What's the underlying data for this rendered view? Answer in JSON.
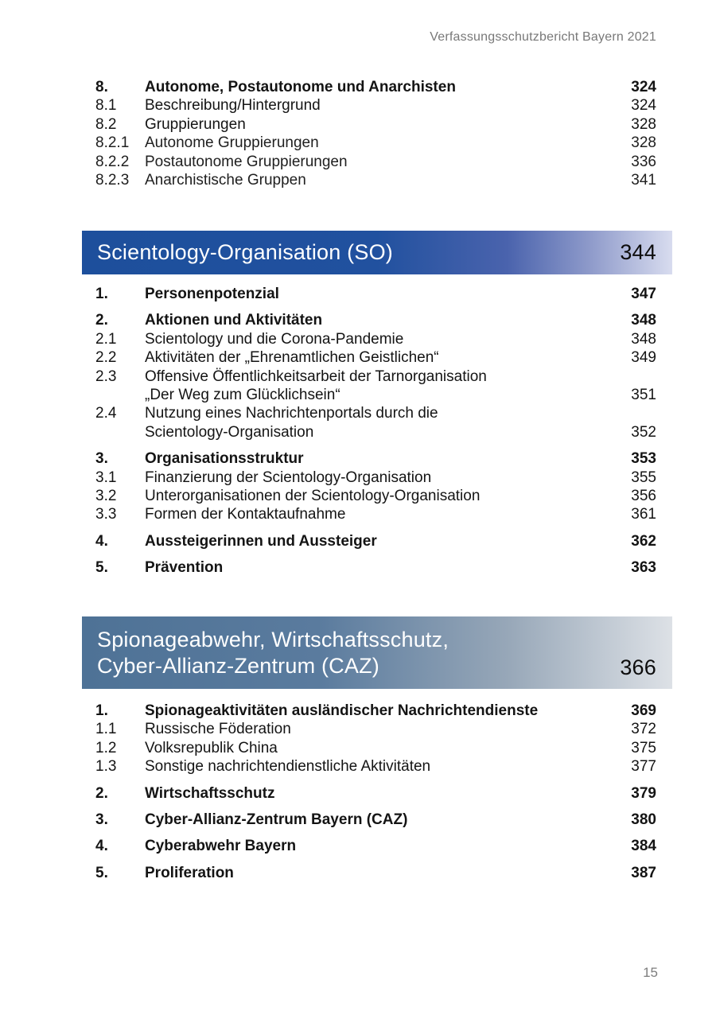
{
  "running_header": "Verfassungsschutzbericht Bayern 2021",
  "footer": {
    "page_number": "15"
  },
  "colors": {
    "bar1_gradient_left": "#1d4f9c",
    "bar1_gradient_right": "#d8dcef",
    "bar2_gradient_left": "#4e7296",
    "bar2_gradient_right": "#dde1e6",
    "bar_title_text": "#ffffff",
    "bar_page_text": "#0d0d0d",
    "running_header_text": "#787878"
  },
  "toc": {
    "continuation_entries": [
      {
        "num": "8.",
        "title": "Autonome, Postautonome und Anarchisten",
        "page": "324"
      },
      {
        "num": "8.1",
        "title": "Beschreibung/Hintergrund",
        "page": "324"
      },
      {
        "num": "8.2",
        "title": "Gruppierungen",
        "page": "328"
      },
      {
        "num": "8.2.1",
        "title": "Autonome Gruppierungen",
        "page": "328"
      },
      {
        "num": "8.2.2",
        "title": "Postautonome Gruppierungen",
        "page": "336"
      },
      {
        "num": "8.2.3",
        "title": "Anarchistische Gruppen",
        "page": "341"
      }
    ],
    "section1": {
      "header_title": "Scientology-Organisation (SO)",
      "header_page": "344",
      "entries": [
        {
          "num": "1.",
          "title": "Personenpotenzial",
          "page": "347"
        },
        {
          "num": "2.",
          "title": "Aktionen und Aktivitäten",
          "page": "348"
        },
        {
          "num": "2.1",
          "title": "Scientology und die Corona-Pandemie",
          "page": "348"
        },
        {
          "num": "2.2",
          "title": "Aktivitäten der „Ehrenamtlichen Geistlichen“",
          "page": "349"
        },
        {
          "num": "2.3",
          "line1": "Offensive Öffentlichkeitsarbeit der Tarnorganisation",
          "line2": "„Der Weg zum Glücklichsein“",
          "page": "351"
        },
        {
          "num": "2.4",
          "line1": "Nutzung eines Nachrichtenportals durch die",
          "line2": "Scientology-Organisation",
          "page": "352"
        },
        {
          "num": "3.",
          "title": "Organisationsstruktur",
          "page": "353"
        },
        {
          "num": "3.1",
          "title": "Finanzierung der Scientology-Organisation",
          "page": "355"
        },
        {
          "num": "3.2",
          "title": "Unterorganisationen der Scientology-Organisation",
          "page": "356"
        },
        {
          "num": "3.3",
          "title": "Formen der Kontaktaufnahme",
          "page": "361"
        },
        {
          "num": "4.",
          "title": "Aussteigerinnen und Aussteiger",
          "page": "362"
        },
        {
          "num": "5.",
          "title": "Prävention",
          "page": "363"
        }
      ]
    },
    "section2": {
      "header_line1": "Spionageabwehr, Wirtschaftsschutz,",
      "header_line2": "Cyber-Allianz-Zentrum (CAZ)",
      "header_page": "366",
      "entries": [
        {
          "num": "1.",
          "title": "Spionageaktivitäten ausländischer Nachrichtendienste",
          "page": "369"
        },
        {
          "num": "1.1",
          "title": "Russische Föderation",
          "page": "372"
        },
        {
          "num": "1.2",
          "title": "Volksrepublik China",
          "page": "375"
        },
        {
          "num": "1.3",
          "title": "Sonstige nachrichtendienstliche Aktivitäten",
          "page": "377"
        },
        {
          "num": "2.",
          "title": "Wirtschaftsschutz",
          "page": "379"
        },
        {
          "num": "3.",
          "title": "Cyber-Allianz-Zentrum Bayern (CAZ)",
          "page": "380"
        },
        {
          "num": "4.",
          "title": "Cyberabwehr Bayern",
          "page": "384"
        },
        {
          "num": "5.",
          "title": "Proliferation",
          "page": "387"
        }
      ]
    }
  }
}
